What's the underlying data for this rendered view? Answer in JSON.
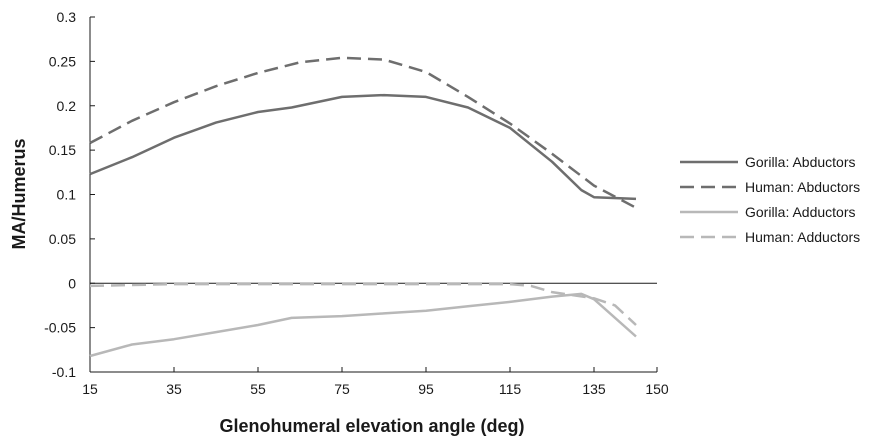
{
  "chart_data": {
    "type": "line",
    "title": "",
    "xlabel": "Glenohumeral elevation angle (deg)",
    "ylabel": "MA/Humerus",
    "xlim": [
      15,
      150
    ],
    "ylim": [
      -0.1,
      0.3
    ],
    "xticks": [
      15,
      35,
      55,
      75,
      95,
      115,
      135,
      150
    ],
    "yticks": [
      -0.1,
      -0.05,
      0,
      0.05,
      0.1,
      0.15,
      0.2,
      0.25,
      0.3
    ],
    "ytick_labels": [
      "-0.1",
      "-0.05",
      "0",
      "0.05",
      "0.1",
      "0.15",
      "0.2",
      "0.25",
      "0.3"
    ],
    "grid": false,
    "zero_line": true,
    "legend_position": "right",
    "series": [
      {
        "name": "Gorilla: Abductors",
        "color": "#6e6e6e",
        "dash": "solid",
        "x": [
          15,
          25,
          35,
          45,
          55,
          63,
          75,
          85,
          95,
          105,
          115,
          125,
          132,
          135,
          145
        ],
        "y": [
          0.123,
          0.142,
          0.164,
          0.181,
          0.193,
          0.198,
          0.21,
          0.212,
          0.21,
          0.198,
          0.175,
          0.137,
          0.105,
          0.097,
          0.095
        ]
      },
      {
        "name": "Human: Abductors",
        "color": "#6e6e6e",
        "dash": "dashed",
        "x": [
          15,
          25,
          35,
          45,
          55,
          65,
          75,
          85,
          95,
          105,
          115,
          125,
          135,
          145
        ],
        "y": [
          0.158,
          0.183,
          0.204,
          0.222,
          0.237,
          0.249,
          0.254,
          0.252,
          0.238,
          0.21,
          0.18,
          0.146,
          0.11,
          0.085
        ]
      },
      {
        "name": "Gorilla: Adductors",
        "color": "#b8b8b8",
        "dash": "solid",
        "x": [
          15,
          25,
          35,
          45,
          55,
          63,
          75,
          85,
          95,
          105,
          115,
          125,
          132,
          135,
          145
        ],
        "y": [
          -0.082,
          -0.069,
          -0.063,
          -0.055,
          -0.047,
          -0.039,
          -0.037,
          -0.034,
          -0.031,
          -0.026,
          -0.021,
          -0.015,
          -0.012,
          -0.018,
          -0.06
        ]
      },
      {
        "name": "Human: Adductors",
        "color": "#b8b8b8",
        "dash": "dashed",
        "x": [
          15,
          25,
          35,
          45,
          55,
          65,
          75,
          85,
          95,
          105,
          115,
          120,
          125,
          135,
          140,
          145
        ],
        "y": [
          -0.003,
          -0.002,
          -0.001,
          -0.001,
          -0.001,
          -0.001,
          -0.001,
          -0.001,
          -0.001,
          -0.001,
          -0.001,
          -0.003,
          -0.01,
          -0.017,
          -0.025,
          -0.047
        ]
      }
    ]
  }
}
